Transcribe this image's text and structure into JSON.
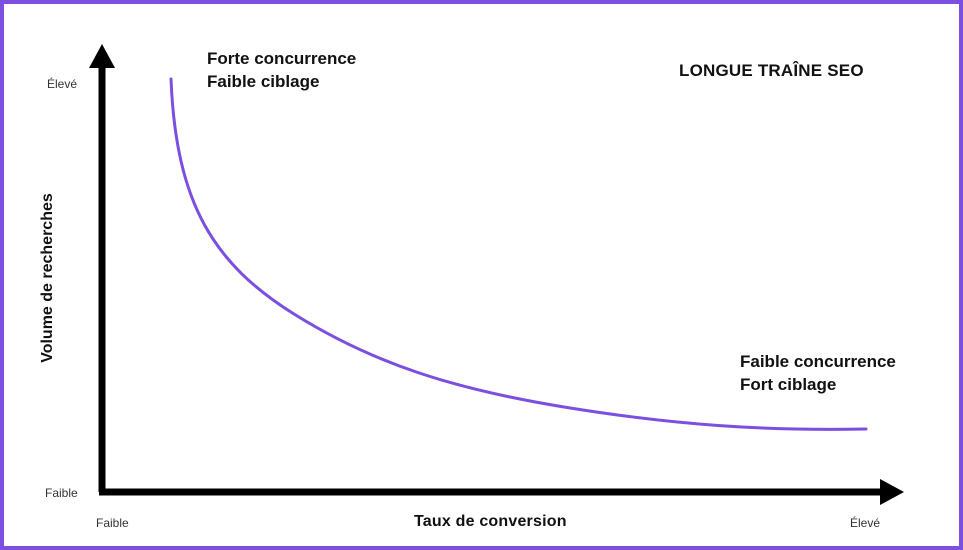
{
  "title": "LONGUE TRAÎNE SEO",
  "accent_color": "#7b4fe0",
  "axis_color": "#000000",
  "x_axis": {
    "title": "Taux de conversion",
    "low_label": "Faible",
    "high_label": "Élevé"
  },
  "y_axis": {
    "title": "Volume de recherches",
    "low_label": "Faible",
    "high_label": "Élevé"
  },
  "annotations": {
    "top_left": {
      "line1": "Forte concurrence",
      "line2": "Faible ciblage"
    },
    "bottom_right": {
      "line1": "Faible concurrence",
      "line2": "Fort ciblage"
    }
  }
}
